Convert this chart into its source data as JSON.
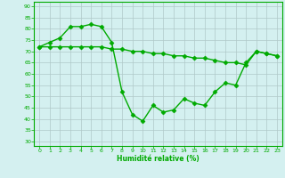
{
  "line1_x": [
    0,
    1,
    2,
    3,
    4,
    5,
    6,
    7,
    8,
    9,
    10,
    11,
    12,
    13,
    14,
    15,
    16,
    17,
    18,
    19,
    20,
    21,
    22,
    23
  ],
  "line1_y": [
    72,
    74,
    76,
    81,
    81,
    82,
    81,
    74,
    52,
    42,
    39,
    46,
    43,
    44,
    49,
    47,
    46,
    52,
    56,
    55,
    65,
    70,
    69,
    68
  ],
  "line2_x": [
    0,
    1,
    2,
    3,
    4,
    5,
    6,
    7,
    8,
    9,
    10,
    11,
    12,
    13,
    14,
    15,
    16,
    17,
    18,
    19,
    20,
    21,
    22,
    23
  ],
  "line2_y": [
    72,
    72,
    72,
    72,
    72,
    72,
    72,
    71,
    71,
    70,
    70,
    69,
    69,
    68,
    68,
    67,
    67,
    66,
    65,
    65,
    64,
    70,
    69,
    68
  ],
  "line_color": "#00aa00",
  "marker": "D",
  "marker_size": 2.5,
  "xlabel": "Humidité relative (%)",
  "xlim": [
    -0.5,
    23.5
  ],
  "ylim": [
    28,
    92
  ],
  "yticks": [
    30,
    35,
    40,
    45,
    50,
    55,
    60,
    65,
    70,
    75,
    80,
    85,
    90
  ],
  "xticks": [
    0,
    1,
    2,
    3,
    4,
    5,
    6,
    7,
    8,
    9,
    10,
    11,
    12,
    13,
    14,
    15,
    16,
    17,
    18,
    19,
    20,
    21,
    22,
    23
  ],
  "bg_color": "#d4f0f0",
  "grid_color": "#b0c8c8",
  "line_width": 1.0,
  "fig_width": 3.2,
  "fig_height": 2.0,
  "dpi": 100
}
